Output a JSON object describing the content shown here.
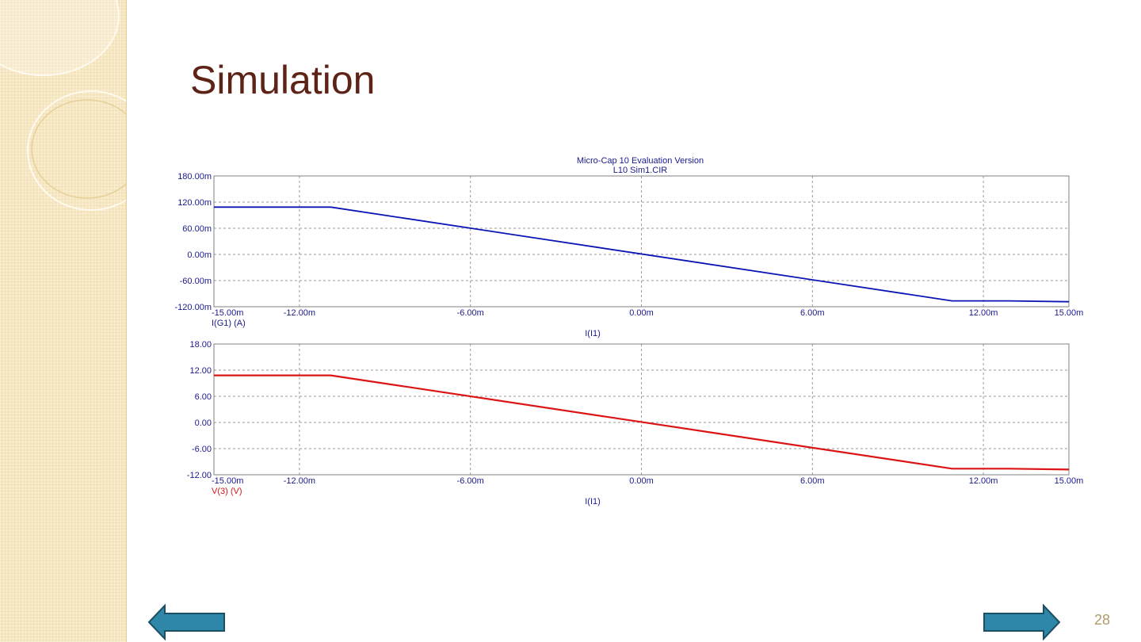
{
  "slide": {
    "title": "Simulation",
    "page_number": "28",
    "prev_icon": "left-arrow-icon",
    "next_icon": "right-arrow-icon",
    "arrow_color": "#2e86a8"
  },
  "chart_data": {
    "header": [
      "Micro-Cap 10 Evaluation Version",
      "L10 Sim1.CIR"
    ],
    "plots": [
      {
        "type": "line",
        "trace_label": "I(G1) (A)",
        "xlabel": "I(I1)",
        "color": "#0a14b4",
        "grid": true,
        "xlim": [
          -15,
          15
        ],
        "ylim": [
          -120,
          180
        ],
        "x_ticks": [
          -15,
          -12,
          -6,
          0,
          6,
          12,
          15
        ],
        "x_tick_labels": [
          "-15.00m",
          "-12.00m",
          "-6.00m",
          "0.00m",
          "6.00m",
          "12.00m",
          "15.00m"
        ],
        "y_ticks": [
          180,
          120,
          60,
          0,
          -60,
          -120
        ],
        "y_tick_labels": [
          "180.00m",
          "120.00m",
          "60.00m",
          "0.00m",
          "-60.00m",
          "-120.00m"
        ],
        "series": [
          {
            "x": [
              -15,
              -10.9,
              10.9,
              12.9,
              15
            ],
            "y": [
              108.5,
              108.5,
              -106.5,
              -106.5,
              -108.5
            ]
          }
        ]
      },
      {
        "type": "line",
        "trace_label": "V(3) (V)",
        "xlabel": "I(I1)",
        "color": "#dc1414",
        "grid": true,
        "xlim": [
          -15,
          15
        ],
        "ylim": [
          -12,
          18
        ],
        "x_ticks": [
          -15,
          -12,
          -6,
          0,
          6,
          12,
          15
        ],
        "x_tick_labels": [
          "-15.00m",
          "-12.00m",
          "-6.00m",
          "0.00m",
          "6.00m",
          "12.00m",
          "15.00m"
        ],
        "y_ticks": [
          18,
          12,
          6,
          0,
          -6,
          -12
        ],
        "y_tick_labels": [
          "18.00",
          "12.00",
          "6.00",
          "0.00",
          "-6.00",
          "-12.00"
        ],
        "series": [
          {
            "x": [
              -15,
              -10.9,
              10.9,
              12.9,
              15
            ],
            "y": [
              10.8,
              10.8,
              -10.6,
              -10.6,
              -10.8
            ]
          }
        ]
      }
    ]
  }
}
